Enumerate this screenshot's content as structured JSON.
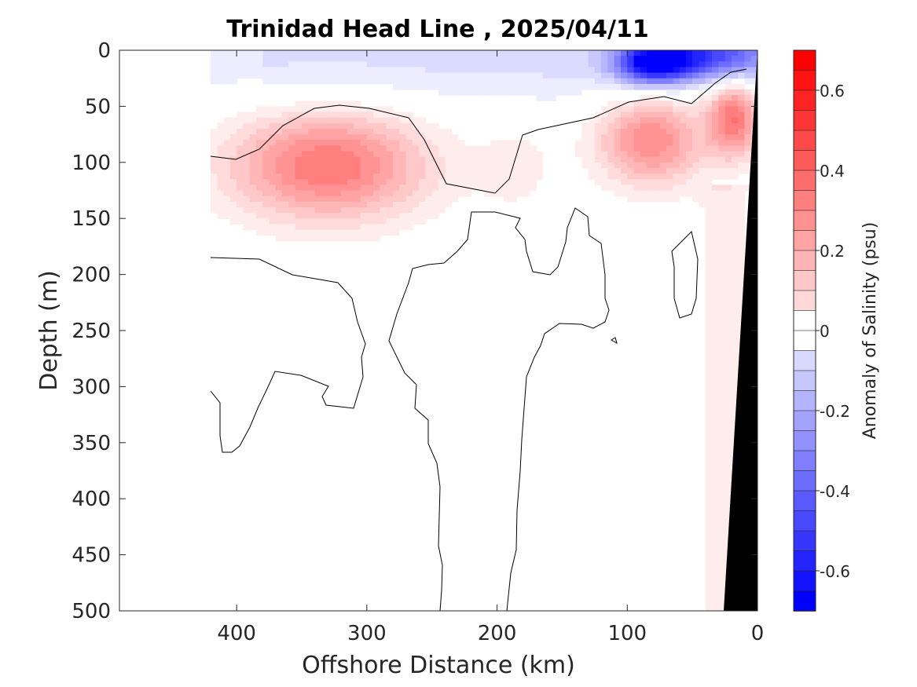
{
  "chart_data": {
    "type": "heatmap",
    "subtype": "filled contour section",
    "title": "Trinidad Head Line , 2025/04/11",
    "xlabel": "Offshore Distance (km)",
    "ylabel": "Depth (m)",
    "xlim": [
      490,
      0
    ],
    "ylim": [
      500,
      0
    ],
    "x_reversed": true,
    "y_reversed": true,
    "x_ticks": [
      "400",
      "300",
      "200",
      "100",
      "0"
    ],
    "x_tick_values": [
      400,
      300,
      200,
      100,
      0
    ],
    "y_ticks": [
      "0",
      "50",
      "100",
      "150",
      "200",
      "250",
      "300",
      "350",
      "400",
      "450",
      "500"
    ],
    "y_tick_values": [
      0,
      50,
      100,
      150,
      200,
      250,
      300,
      350,
      400,
      450,
      500
    ],
    "grid": false,
    "colorbar": {
      "label": "Anomaly of Salinity (psu)",
      "range": [
        -0.7,
        0.7
      ],
      "step": 0.05,
      "tick_labels": [
        "0.6",
        "0.4",
        "0.2",
        "0",
        "-0.2",
        "-0.4",
        "-0.6"
      ],
      "tick_values": [
        0.6,
        0.4,
        0.2,
        0,
        -0.2,
        -0.4,
        -0.6
      ],
      "colormap": "blue-white-red",
      "negative_color": "#0000ff",
      "zero_color": "#ffffff",
      "positive_color": "#ff0000"
    },
    "data_extent_km": [
      420,
      0
    ],
    "features": [
      {
        "kind": "positive",
        "x": 330,
        "depth": 103,
        "peak": 0.4
      },
      {
        "kind": "positive",
        "x": 82,
        "depth": 80,
        "peak": 0.35
      },
      {
        "kind": "positive",
        "x": 18,
        "depth": 60,
        "peak": 0.4
      },
      {
        "kind": "negative",
        "x": 80,
        "depth": 12,
        "peak": -0.55
      },
      {
        "kind": "negative",
        "x": 42,
        "depth": 5,
        "peak": -0.5
      }
    ],
    "bottom_topography": "black wedge near 0 km",
    "bottom_color": "#000000"
  }
}
